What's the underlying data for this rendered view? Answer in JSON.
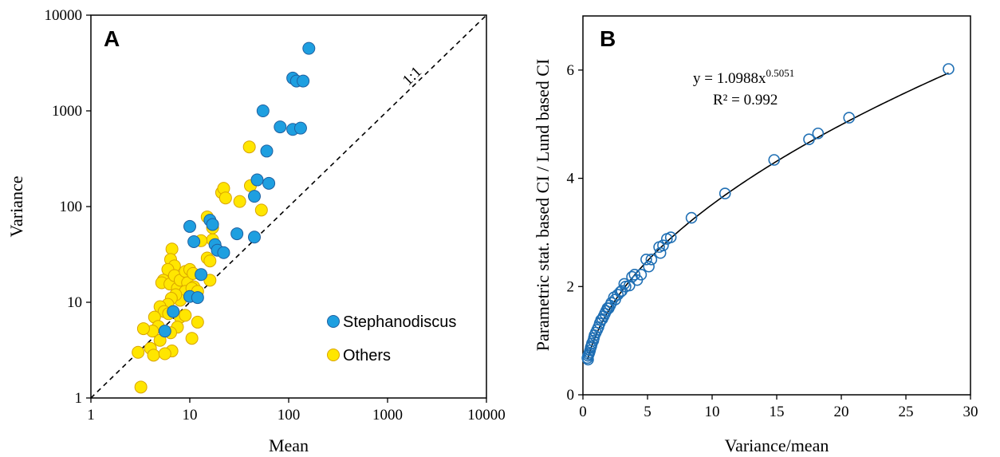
{
  "chart_data": [
    {
      "panel": "A",
      "type": "scatter",
      "xlabel": "Mean",
      "ylabel": "Variance",
      "xscale": "log",
      "yscale": "log",
      "xlim": [
        1,
        10000
      ],
      "ylim": [
        1,
        10000
      ],
      "xticks": [
        "1",
        "10",
        "100",
        "1000",
        "10000"
      ],
      "yticks": [
        "1",
        "10",
        "100",
        "1000",
        "10000"
      ],
      "reference_line": {
        "label": "1:1",
        "style": "dashed"
      },
      "legend_position": "bottom-right",
      "series": [
        {
          "name": "Stephanodiscus",
          "color": "#1E9FE0",
          "edge_color": "#2060A0",
          "points": [
            [
              160,
              4500
            ],
            [
              110,
              2200
            ],
            [
              120,
              2050
            ],
            [
              140,
              2050
            ],
            [
              55,
              1000
            ],
            [
              82,
              680
            ],
            [
              110,
              640
            ],
            [
              132,
              660
            ],
            [
              60,
              380
            ],
            [
              48,
              190
            ],
            [
              63,
              175
            ],
            [
              45,
              128
            ],
            [
              30,
              52
            ],
            [
              45,
              48
            ],
            [
              16,
              72
            ],
            [
              17,
              65
            ],
            [
              10,
              62
            ],
            [
              11,
              43
            ],
            [
              18,
              40
            ],
            [
              19,
              35
            ],
            [
              22,
              33
            ],
            [
              13,
              19.5
            ],
            [
              10,
              11.5
            ],
            [
              12,
              11.2
            ],
            [
              6.8,
              8
            ],
            [
              5.6,
              5
            ]
          ]
        },
        {
          "name": "Others",
          "color": "#FFE600",
          "edge_color": "#D9A400",
          "points": [
            [
              40,
              420
            ],
            [
              21,
              140
            ],
            [
              22,
              155
            ],
            [
              41,
              165
            ],
            [
              32,
              113
            ],
            [
              23,
              123
            ],
            [
              53,
              92
            ],
            [
              15,
              78
            ],
            [
              17,
              60
            ],
            [
              17,
              45
            ],
            [
              13,
              44
            ],
            [
              15,
              29
            ],
            [
              16,
              27
            ],
            [
              16,
              17
            ],
            [
              6.6,
              36
            ],
            [
              6.4,
              28
            ],
            [
              7,
              24
            ],
            [
              6,
              22
            ],
            [
              5.4,
              17
            ],
            [
              5.2,
              16
            ],
            [
              6.3,
              15.5
            ],
            [
              7,
              19
            ],
            [
              7.5,
              14
            ],
            [
              8,
              17
            ],
            [
              8.5,
              12
            ],
            [
              9,
              21
            ],
            [
              9.5,
              16
            ],
            [
              10,
              22
            ],
            [
              9,
              13
            ],
            [
              10.8,
              20
            ],
            [
              11,
              14.5
            ],
            [
              10.5,
              14
            ],
            [
              8,
              10.5
            ],
            [
              7.2,
              12
            ],
            [
              6.5,
              11
            ],
            [
              6,
              9.5
            ],
            [
              5,
              9
            ],
            [
              5.5,
              8
            ],
            [
              4.4,
              7
            ],
            [
              4.8,
              5.6
            ],
            [
              4.2,
              5
            ],
            [
              5,
              4
            ],
            [
              3.4,
              5.3
            ],
            [
              4,
              3.3
            ],
            [
              3,
              3
            ],
            [
              4.3,
              2.8
            ],
            [
              6.6,
              3.1
            ],
            [
              5.6,
              2.9
            ],
            [
              8,
              7
            ],
            [
              9,
              7.3
            ],
            [
              6.1,
              7.6
            ],
            [
              7.5,
              5.5
            ],
            [
              6.4,
              4.8
            ],
            [
              12,
              6.2
            ],
            [
              10.5,
              4.2
            ],
            [
              12,
              13
            ],
            [
              3.2,
              1.3
            ]
          ]
        }
      ]
    },
    {
      "panel": "B",
      "type": "scatter",
      "xlabel": "Variance/mean",
      "ylabel": "Parametric stat. based CI / Lund based CI",
      "xlim": [
        0,
        30
      ],
      "ylim": [
        0,
        7
      ],
      "xticks": [
        "0",
        "5",
        "10",
        "15",
        "20",
        "25",
        "30"
      ],
      "yticks": [
        "0",
        "2",
        "4",
        "6"
      ],
      "fit": {
        "equation_prefix": "y = 1.0988x",
        "equation_exponent": "0.5051",
        "r2_label": "R² = 0.992",
        "a": 1.0988,
        "b": 0.5051
      },
      "marker": {
        "style": "open-circle",
        "color": "#1F6FB4"
      },
      "curve_color": "#000000",
      "points": [
        [
          28.3,
          6.02
        ],
        [
          20.6,
          5.12
        ],
        [
          18.2,
          4.83
        ],
        [
          17.5,
          4.72
        ],
        [
          14.8,
          4.34
        ],
        [
          11.0,
          3.72
        ],
        [
          8.4,
          3.27
        ],
        [
          6.8,
          2.91
        ],
        [
          6.5,
          2.88
        ],
        [
          6.2,
          2.76
        ],
        [
          5.9,
          2.73
        ],
        [
          6.0,
          2.62
        ],
        [
          5.3,
          2.5
        ],
        [
          5.1,
          2.37
        ],
        [
          4.9,
          2.5
        ],
        [
          4.5,
          2.22
        ],
        [
          4.0,
          2.22
        ],
        [
          4.2,
          2.12
        ],
        [
          3.8,
          2.18
        ],
        [
          3.6,
          2.02
        ],
        [
          3.3,
          2.0
        ],
        [
          3.2,
          2.05
        ],
        [
          3.0,
          1.92
        ],
        [
          2.9,
          1.9
        ],
        [
          2.7,
          1.85
        ],
        [
          2.5,
          1.76
        ],
        [
          2.4,
          1.8
        ],
        [
          2.2,
          1.7
        ],
        [
          2.1,
          1.65
        ],
        [
          2.0,
          1.6
        ],
        [
          1.9,
          1.6
        ],
        [
          1.8,
          1.55
        ],
        [
          1.7,
          1.5
        ],
        [
          1.6,
          1.45
        ],
        [
          1.5,
          1.4
        ],
        [
          1.4,
          1.38
        ],
        [
          1.3,
          1.32
        ],
        [
          1.2,
          1.25
        ],
        [
          1.1,
          1.2
        ],
        [
          1.0,
          1.15
        ],
        [
          0.9,
          1.1
        ],
        [
          0.85,
          1.05
        ],
        [
          0.8,
          1.0
        ],
        [
          0.7,
          0.95
        ],
        [
          0.65,
          0.9
        ],
        [
          0.6,
          0.87
        ],
        [
          0.55,
          0.82
        ],
        [
          0.5,
          0.78
        ],
        [
          0.45,
          0.75
        ],
        [
          0.4,
          0.72
        ],
        [
          0.35,
          0.68
        ],
        [
          0.4,
          0.65
        ]
      ]
    }
  ]
}
